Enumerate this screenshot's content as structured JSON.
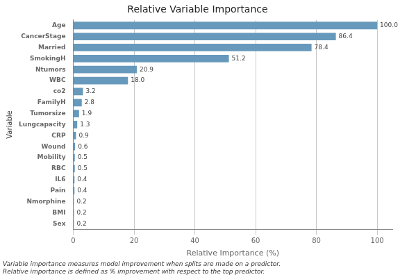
{
  "chart_data": {
    "type": "bar",
    "orientation": "horizontal",
    "title": "Relative Variable Importance",
    "xlabel": "Relative Importance (%)",
    "ylabel": "Variable",
    "categories": [
      "Age",
      "CancerStage",
      "Married",
      "SmokingH",
      "Ntumors",
      "WBC",
      "co2",
      "FamilyH",
      "Tumorsize",
      "Lungcapacity",
      "CRP",
      "Wound",
      "Mobility",
      "RBC",
      "IL6",
      "Pain",
      "Nmorphine",
      "BMI",
      "Sex"
    ],
    "values": [
      100.0,
      86.4,
      78.4,
      51.2,
      20.9,
      18.0,
      3.2,
      2.8,
      1.9,
      1.3,
      0.9,
      0.6,
      0.5,
      0.5,
      0.4,
      0.4,
      0.2,
      0.2,
      0.2
    ],
    "value_labels": [
      "100.0",
      "86.4",
      "78.4",
      "51.2",
      "20.9",
      "18.0",
      "3.2",
      "2.8",
      "1.9",
      "1.3",
      "0.9",
      "0.6",
      "0.5",
      "0.5",
      "0.4",
      "0.4",
      "0.2",
      "0.2",
      "0.2"
    ],
    "data_labels": true,
    "color": "#6699BB",
    "xlim": [
      0,
      105
    ],
    "xticks": [
      0,
      20,
      40,
      60,
      80,
      100
    ],
    "grid": true,
    "annotations": [
      "Variable importance measures model improvement when splits are made on a predictor.",
      "Relative importance is defined as % improvement with respect to the top predictor."
    ]
  }
}
